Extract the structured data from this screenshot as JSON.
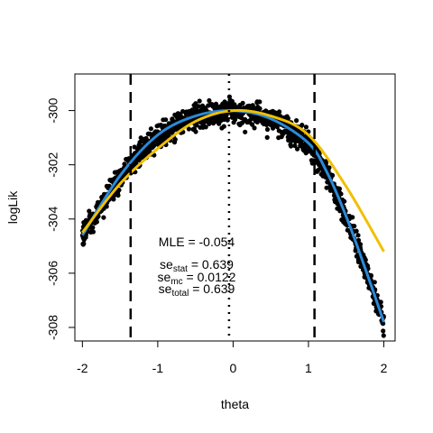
{
  "chart_data": {
    "type": "scatter",
    "title": "",
    "xlabel": "theta",
    "ylabel": "logLik",
    "xlim": [
      -2.1,
      2.15
    ],
    "ylim": [
      -308.5,
      -298.65
    ],
    "x_ticks": [
      -2,
      -1,
      0,
      1,
      2
    ],
    "y_ticks": [
      -300,
      -302,
      -304,
      -306,
      -308
    ],
    "x_tick_labels": [
      "-2",
      "-1",
      "0",
      "1",
      "2"
    ],
    "y_tick_labels": [
      "-300",
      "-302",
      "-304",
      "-306",
      "-308"
    ],
    "grid": false,
    "legend": "none",
    "points": {
      "description_of_trend": "noisy concave log-likelihood profile",
      "x_range": [
        -2,
        2
      ],
      "peak": {
        "x": 0,
        "y": -300
      },
      "color": "#000000"
    },
    "series": [
      {
        "kind": "fit",
        "color": "#2b8ad8",
        "x": [
          -2,
          -1.5,
          -1.0,
          -0.5,
          0.0,
          0.5,
          1.0,
          1.25,
          1.5,
          1.75,
          2.0
        ],
        "y": [
          -304.6,
          -302.4,
          -300.9,
          -300.2,
          -300.0,
          -300.3,
          -301.2,
          -302.3,
          -303.9,
          -305.8,
          -307.8
        ]
      },
      {
        "kind": "quadratic",
        "color": "#f0c000",
        "x": [
          -2,
          -1.5,
          -1.0,
          -0.5,
          0.0,
          0.5,
          1.0,
          1.5,
          2.0
        ],
        "y": [
          -304.5,
          -302.7,
          -301.4,
          -300.4,
          -300.0,
          -300.2,
          -300.9,
          -302.8,
          -305.2
        ]
      }
    ],
    "vlines": [
      {
        "x": -1.36,
        "style": "dashed",
        "width": 2.5
      },
      {
        "x": -0.054,
        "style": "dotted",
        "width": 2.5
      },
      {
        "x": 1.08,
        "style": "dashed",
        "width": 2.5
      }
    ],
    "annotations": {
      "mle": "MLE = -0.054",
      "se_stat_base": "se",
      "se_stat_sub": "stat",
      "se_stat_val": " = 0.639",
      "se_mc_base": "se",
      "se_mc_sub": "mc",
      "se_mc_val": " = 0.0122",
      "se_total_base": "se",
      "se_total_sub": "total",
      "se_total_val": " = 0.639"
    }
  }
}
